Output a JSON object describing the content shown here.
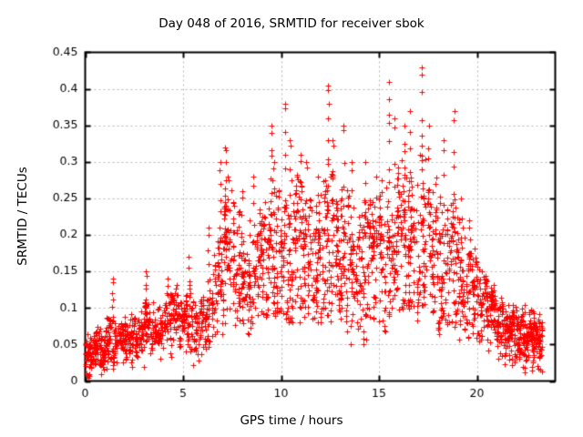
{
  "chart_data": {
    "type": "scatter",
    "title": "Day 048 of 2016, SRMTID for receiver sbok",
    "xlabel": "GPS time / hours",
    "ylabel": "SRMTID / TECUs",
    "xlim": [
      0,
      24
    ],
    "ylim": [
      0,
      0.45
    ],
    "x_ticks": [
      {
        "v": 0,
        "label": "0"
      },
      {
        "v": 5,
        "label": "5"
      },
      {
        "v": 10,
        "label": "10"
      },
      {
        "v": 15,
        "label": "15"
      },
      {
        "v": 20,
        "label": "20"
      }
    ],
    "y_ticks": [
      {
        "v": 0,
        "label": "0"
      },
      {
        "v": 0.05,
        "label": "0.05"
      },
      {
        "v": 0.1,
        "label": "0.1"
      },
      {
        "v": 0.15,
        "label": "0.15"
      },
      {
        "v": 0.2,
        "label": "0.2"
      },
      {
        "v": 0.25,
        "label": "0.25"
      },
      {
        "v": 0.3,
        "label": "0.3"
      },
      {
        "v": 0.35,
        "label": "0.35"
      },
      {
        "v": 0.4,
        "label": "0.4"
      },
      {
        "v": 0.45,
        "label": "0.45"
      }
    ],
    "grid": true,
    "legend": "none",
    "marker": "plus",
    "marker_color": "#ff0000",
    "grid_color": "#b4b4b4",
    "border_color": "#000000",
    "background_color": "#ffffff",
    "x_end": 23.35,
    "seed": 20160048,
    "bands": [
      [
        0.0,
        0.025,
        0.055,
        70
      ],
      [
        0.5,
        0.025,
        0.065,
        70
      ],
      [
        1.0,
        0.03,
        0.075,
        60
      ],
      [
        1.5,
        0.03,
        0.07,
        60
      ],
      [
        2.0,
        0.04,
        0.08,
        60
      ],
      [
        2.5,
        0.04,
        0.085,
        60
      ],
      [
        3.0,
        0.05,
        0.095,
        60
      ],
      [
        3.5,
        0.05,
        0.09,
        55
      ],
      [
        4.0,
        0.055,
        0.105,
        55
      ],
      [
        4.5,
        0.06,
        0.115,
        55
      ],
      [
        5.0,
        0.05,
        0.115,
        50
      ],
      [
        5.5,
        0.035,
        0.1,
        50
      ],
      [
        6.0,
        0.05,
        0.13,
        50
      ],
      [
        6.5,
        0.07,
        0.17,
        50
      ],
      [
        7.0,
        0.1,
        0.23,
        55
      ],
      [
        7.5,
        0.1,
        0.21,
        55
      ],
      [
        8.0,
        0.085,
        0.19,
        55
      ],
      [
        8.5,
        0.1,
        0.21,
        55
      ],
      [
        9.0,
        0.1,
        0.21,
        55
      ],
      [
        9.5,
        0.115,
        0.24,
        55
      ],
      [
        10.0,
        0.1,
        0.23,
        55
      ],
      [
        10.5,
        0.1,
        0.24,
        55
      ],
      [
        11.0,
        0.1,
        0.23,
        55
      ],
      [
        11.5,
        0.1,
        0.21,
        55
      ],
      [
        12.0,
        0.1,
        0.24,
        55
      ],
      [
        12.5,
        0.115,
        0.25,
        55
      ],
      [
        13.0,
        0.1,
        0.23,
        55
      ],
      [
        13.5,
        0.085,
        0.21,
        55
      ],
      [
        14.0,
        0.085,
        0.21,
        55
      ],
      [
        14.5,
        0.1,
        0.22,
        55
      ],
      [
        15.0,
        0.1,
        0.24,
        55
      ],
      [
        15.5,
        0.115,
        0.25,
        55
      ],
      [
        16.0,
        0.115,
        0.26,
        55
      ],
      [
        16.5,
        0.115,
        0.25,
        55
      ],
      [
        17.0,
        0.115,
        0.27,
        55
      ],
      [
        17.5,
        0.1,
        0.24,
        55
      ],
      [
        18.0,
        0.1,
        0.23,
        55
      ],
      [
        18.5,
        0.1,
        0.22,
        55
      ],
      [
        19.0,
        0.085,
        0.19,
        55
      ],
      [
        19.5,
        0.08,
        0.17,
        55
      ],
      [
        20.0,
        0.07,
        0.14,
        55
      ],
      [
        20.5,
        0.05,
        0.115,
        60
      ],
      [
        21.0,
        0.045,
        0.1,
        60
      ],
      [
        21.5,
        0.04,
        0.09,
        75
      ],
      [
        22.0,
        0.04,
        0.09,
        85
      ],
      [
        22.5,
        0.035,
        0.085,
        85
      ],
      [
        23.0,
        0.035,
        0.08,
        50
      ]
    ],
    "streaks": [
      [
        1.4,
        0.1,
        0.14,
        4
      ],
      [
        3.1,
        0.11,
        0.15,
        4
      ],
      [
        4.2,
        0.11,
        0.14,
        3
      ],
      [
        5.3,
        0.12,
        0.17,
        3
      ],
      [
        6.3,
        0.13,
        0.21,
        4
      ],
      [
        6.9,
        0.18,
        0.3,
        6
      ],
      [
        7.15,
        0.2,
        0.32,
        7
      ],
      [
        7.3,
        0.18,
        0.28,
        5
      ],
      [
        8.0,
        0.17,
        0.26,
        4
      ],
      [
        8.6,
        0.18,
        0.28,
        4
      ],
      [
        9.5,
        0.22,
        0.35,
        7
      ],
      [
        9.65,
        0.2,
        0.3,
        4
      ],
      [
        10.2,
        0.22,
        0.38,
        6
      ],
      [
        10.45,
        0.2,
        0.33,
        4
      ],
      [
        11.0,
        0.2,
        0.31,
        5
      ],
      [
        11.3,
        0.18,
        0.3,
        4
      ],
      [
        11.9,
        0.18,
        0.28,
        4
      ],
      [
        12.4,
        0.24,
        0.405,
        8
      ],
      [
        12.65,
        0.2,
        0.33,
        4
      ],
      [
        13.2,
        0.2,
        0.35,
        5
      ],
      [
        13.6,
        0.18,
        0.3,
        4
      ],
      [
        14.3,
        0.18,
        0.3,
        4
      ],
      [
        14.85,
        0.17,
        0.28,
        3
      ],
      [
        15.5,
        0.24,
        0.41,
        7
      ],
      [
        15.8,
        0.2,
        0.36,
        4
      ],
      [
        16.3,
        0.22,
        0.35,
        5
      ],
      [
        16.6,
        0.22,
        0.37,
        4
      ],
      [
        17.2,
        0.26,
        0.43,
        7
      ],
      [
        17.55,
        0.2,
        0.35,
        4
      ],
      [
        18.3,
        0.18,
        0.33,
        4
      ],
      [
        18.85,
        0.2,
        0.37,
        5
      ],
      [
        19.2,
        0.16,
        0.25,
        3
      ],
      [
        19.6,
        0.14,
        0.22,
        3
      ]
    ],
    "outliers": [
      [
        0.15,
        0.004
      ],
      [
        0.22,
        0.007
      ],
      [
        22.45,
        0.012
      ],
      [
        13.55,
        0.05
      ],
      [
        21.1,
        0.03
      ],
      [
        23.1,
        0.02
      ]
    ]
  }
}
